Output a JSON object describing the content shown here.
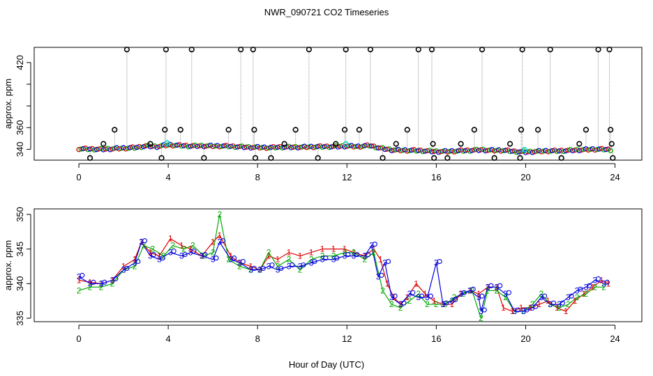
{
  "chart_data": [
    {
      "type": "scatter",
      "title": "NWR_090721  CO2 Timeseries",
      "xlabel": "",
      "ylabel": "approx. ppm",
      "xlim": [
        -2,
        25.2
      ],
      "ylim": [
        330,
        434
      ],
      "xticks": [
        "0",
        "4",
        "8",
        "12",
        "16",
        "20",
        "24"
      ],
      "yticks": [
        "340",
        "360",
        "380",
        "400",
        "420"
      ],
      "ytick_labels_shown": [
        "340",
        "360",
        "420"
      ],
      "grid": false,
      "colors": {
        "black": "#000000",
        "red": "#dd0000",
        "green": "#00aa00",
        "blue": "#0000dd",
        "cyan": "#00cccc",
        "connector": "#999999"
      },
      "baseline": {
        "name": "",
        "x": [
          0,
          0.5,
          1,
          1.5,
          2,
          2.5,
          3,
          3.5,
          4,
          4.5,
          5,
          5.5,
          6,
          6.5,
          7,
          7.5,
          8,
          8.5,
          9,
          9.5,
          10,
          10.5,
          11,
          11.5,
          12,
          12.5,
          13,
          13.5,
          14,
          14.5,
          15,
          15.5,
          16,
          16.5,
          17,
          17.5,
          18,
          18.5,
          19,
          19.5,
          20,
          20.5,
          21,
          21.5,
          22,
          22.5,
          23,
          23.5,
          23.8
        ],
        "y": [
          340.5,
          340.2,
          340,
          340.5,
          341,
          341.5,
          343,
          342.5,
          344,
          343.5,
          343,
          343.2,
          343,
          343,
          342.5,
          342,
          341.8,
          341.5,
          342,
          342,
          342,
          342.3,
          342.5,
          342.5,
          343,
          342.5,
          343.5,
          341,
          339.5,
          339,
          339,
          338.5,
          338,
          338,
          338.5,
          339,
          339.5,
          339,
          339,
          338,
          337.5,
          338,
          338.5,
          338.5,
          339,
          339.5,
          340,
          340,
          339.5
        ]
      },
      "flagged": {
        "name": "",
        "x": [
          0.5,
          1.1,
          1.6,
          2.15,
          3.2,
          3.7,
          3.85,
          3.9,
          4.55,
          5.05,
          5.6,
          6.7,
          7.25,
          7.8,
          7.85,
          7.9,
          8.6,
          9.2,
          9.7,
          10.3,
          10.7,
          11.5,
          11.9,
          11.95,
          12.55,
          13.05,
          13.6,
          14.2,
          14.7,
          15.2,
          15.8,
          15.85,
          15.9,
          16.5,
          17.1,
          17.7,
          18.05,
          18.6,
          19.3,
          19.75,
          19.8,
          19.85,
          20.55,
          21.1,
          21.6,
          22.4,
          22.7,
          23.25,
          23.75,
          23.8,
          23.85,
          23.9
        ],
        "y": [
          332,
          345,
          358,
          432,
          345,
          332,
          358,
          432,
          358,
          432,
          332,
          358,
          432,
          432,
          358,
          332,
          332,
          345,
          358,
          432,
          332,
          345,
          358,
          432,
          358,
          432,
          332,
          345,
          358,
          432,
          432,
          345,
          332,
          332,
          345,
          358,
          432,
          332,
          345,
          332,
          358,
          432,
          358,
          432,
          332,
          345,
          358,
          432,
          432,
          358,
          345,
          332
        ]
      }
    },
    {
      "type": "line",
      "title": "",
      "xlabel": "Hour of Day (UTC)",
      "ylabel": "approx. ppm",
      "xlim": [
        -2,
        25.2
      ],
      "ylim": [
        334.5,
        350.8
      ],
      "xticks": [
        "0",
        "4",
        "8",
        "12",
        "16",
        "20",
        "24"
      ],
      "yticks": [
        "335",
        "340",
        "345",
        "350"
      ],
      "grid": false,
      "point_symbols": [
        "1",
        "2",
        "3"
      ],
      "series": [
        {
          "name": "",
          "symbol": "1",
          "color": "#dd0000",
          "x": [
            0,
            0.5,
            1,
            1.5,
            2,
            2.5,
            2.8,
            3.2,
            3.6,
            4.1,
            4.6,
            5,
            5.5,
            6,
            6.3,
            6.8,
            7.2,
            7.7,
            8.1,
            8.5,
            8.9,
            9.4,
            9.9,
            10.4,
            10.9,
            11.4,
            11.9,
            12.3,
            12.8,
            13.2,
            13.5,
            13.8,
            14.1,
            14.4,
            14.7,
            15.1,
            15.5,
            15.9,
            16.3,
            16.7,
            17.1,
            17.5,
            17.9,
            18.3,
            18.7,
            19,
            19.4,
            19.8,
            20.2,
            20.6,
            21,
            21.4,
            21.8,
            22.2,
            22.6,
            23,
            23.4,
            23.7
          ],
          "y": [
            340.5,
            340.2,
            340,
            340.5,
            342.5,
            343.5,
            346,
            344.5,
            344,
            346.5,
            345.5,
            345,
            344,
            346,
            347,
            344,
            343,
            342.5,
            342,
            344,
            343.5,
            344.5,
            344,
            344.5,
            345,
            345,
            345,
            344.5,
            344,
            345,
            343.5,
            340,
            338,
            337,
            338,
            340,
            338.5,
            337.5,
            337,
            337,
            338.5,
            339,
            338.5,
            339.5,
            339.5,
            336.5,
            336,
            336.5,
            336.5,
            337,
            337.5,
            336.5,
            336,
            337.5,
            338.5,
            339.5,
            340.5,
            340
          ]
        },
        {
          "name": "",
          "symbol": "2",
          "color": "#00aa00",
          "x": [
            0,
            0.5,
            1,
            1.5,
            2,
            2.5,
            2.9,
            3.3,
            3.8,
            4.2,
            4.7,
            5.1,
            5.6,
            6,
            6.3,
            6.7,
            7.2,
            7.7,
            8.1,
            8.5,
            8.9,
            9.4,
            9.9,
            10.4,
            10.9,
            11.4,
            11.9,
            12.3,
            12.8,
            13.2,
            13.6,
            14,
            14.4,
            14.8,
            15.2,
            15.6,
            16,
            16.4,
            16.8,
            17.2,
            17.6,
            18,
            18.3,
            18.7,
            19.1,
            19.5,
            19.9,
            20.3,
            20.7,
            21.1,
            21.5,
            21.9,
            22.3,
            22.7,
            23.1,
            23.5
          ],
          "y": [
            339,
            339.5,
            339.5,
            340,
            342,
            342.5,
            345.5,
            345,
            344,
            345.5,
            345,
            345.5,
            344,
            344.5,
            350,
            343.5,
            342.5,
            342,
            342,
            344.5,
            342.5,
            343.5,
            342,
            343.5,
            344,
            344,
            344.5,
            344.5,
            343.5,
            344.5,
            339,
            337,
            336.5,
            337.5,
            338.5,
            337,
            337,
            337,
            338,
            338.5,
            339,
            335,
            339,
            339,
            338,
            336,
            336,
            337,
            338.5,
            337,
            336.5,
            337,
            338,
            338.5,
            339.5,
            339.5
          ]
        },
        {
          "name": "",
          "symbol": "3",
          "color": "#0000dd",
          "x": [
            0,
            0.5,
            1,
            1.5,
            2,
            2.5,
            2.8,
            3.2,
            3.6,
            4.1,
            4.6,
            5,
            5.5,
            6,
            6.3,
            6.8,
            7.2,
            7.7,
            8.1,
            8.5,
            8.9,
            9.4,
            9.9,
            10.4,
            10.9,
            11.4,
            11.9,
            12.3,
            12.8,
            13.1,
            13.4,
            13.7,
            14,
            14.4,
            14.8,
            15.2,
            15.6,
            16,
            16.3,
            16.7,
            17.1,
            17.5,
            17.9,
            18,
            18.3,
            18.7,
            19.1,
            19.5,
            19.9,
            20.3,
            20.7,
            21.1,
            21.5,
            21.9,
            22.3,
            22.7,
            23.1,
            23.5
          ],
          "y": [
            341,
            340,
            340,
            340.5,
            342,
            343,
            346,
            344,
            343.5,
            344.5,
            344,
            344.5,
            344,
            343.5,
            346,
            343.5,
            343,
            342,
            342,
            342.5,
            342,
            342.5,
            342.5,
            343,
            343.5,
            343.5,
            344,
            344,
            344,
            345.5,
            341,
            343,
            338,
            337,
            338.5,
            338,
            338,
            343,
            337,
            337.5,
            338.5,
            339,
            338,
            336,
            339.5,
            339.5,
            338.5,
            336,
            336,
            336.5,
            338,
            337,
            337,
            338,
            339,
            339.5,
            340.5,
            340
          ]
        }
      ]
    }
  ]
}
